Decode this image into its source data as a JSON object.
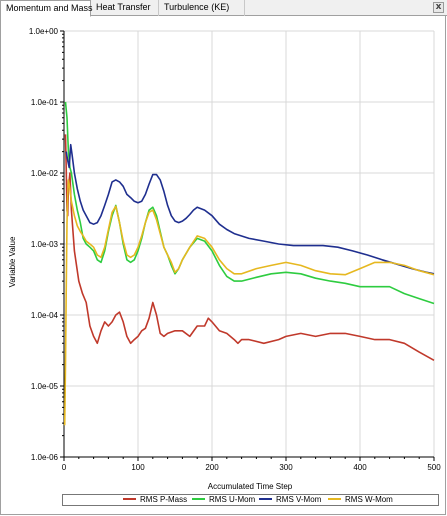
{
  "tabs": [
    {
      "label": "Momentum and Mass",
      "active": true
    },
    {
      "label": "Heat Transfer",
      "active": false
    },
    {
      "label": "Turbulence (KE)",
      "active": false
    }
  ],
  "close_label": "x",
  "chart_data": {
    "type": "line",
    "xlabel": "Accumulated Time Step",
    "ylabel": "Variable Value",
    "xlim": [
      0,
      500
    ],
    "ylim": [
      1e-06,
      1
    ],
    "y_scale": "log",
    "x_ticks": [
      0,
      100,
      200,
      300,
      400,
      500
    ],
    "y_ticks": [
      {
        "value": 1,
        "label": "1.0e+00"
      },
      {
        "value": 0.1,
        "label": "1.0e-01"
      },
      {
        "value": 0.01,
        "label": "1.0e-02"
      },
      {
        "value": 0.001,
        "label": "1.0e-03"
      },
      {
        "value": 0.0001,
        "label": "1.0e-04"
      },
      {
        "value": 1e-05,
        "label": "1.0e-05"
      },
      {
        "value": 1e-06,
        "label": "1.0e-06"
      }
    ],
    "grid": true,
    "legend_position": "bottom",
    "series": [
      {
        "name": "RMS P-Mass",
        "color": "#c0392b",
        "x": [
          2,
          3,
          4,
          5,
          6,
          8,
          10,
          14,
          20,
          25,
          30,
          35,
          40,
          45,
          50,
          55,
          60,
          65,
          70,
          75,
          80,
          85,
          90,
          95,
          100,
          105,
          110,
          115,
          120,
          125,
          130,
          135,
          140,
          150,
          160,
          170,
          180,
          190,
          195,
          200,
          210,
          220,
          230,
          235,
          240,
          250,
          270,
          290,
          300,
          320,
          340,
          360,
          380,
          400,
          420,
          440,
          460,
          480,
          500
        ],
        "y": [
          0.035,
          0.012,
          0.003,
          0.0025,
          0.006,
          0.01,
          0.003,
          0.0008,
          0.0003,
          0.0002,
          0.00015,
          7e-05,
          5e-05,
          4e-05,
          6e-05,
          8e-05,
          7e-05,
          8e-05,
          0.0001,
          0.00011,
          8e-05,
          5e-05,
          4e-05,
          4.5e-05,
          5e-05,
          6e-05,
          6.5e-05,
          9e-05,
          0.00015,
          0.0001,
          5.5e-05,
          5e-05,
          5.5e-05,
          6e-05,
          6e-05,
          5e-05,
          7e-05,
          7e-05,
          9e-05,
          8e-05,
          6e-05,
          5.5e-05,
          4.5e-05,
          4e-05,
          4.5e-05,
          4.5e-05,
          4e-05,
          4.5e-05,
          5e-05,
          5.5e-05,
          5e-05,
          5.5e-05,
          5.5e-05,
          5e-05,
          4.5e-05,
          4.5e-05,
          4e-05,
          3e-05,
          2.3e-05
        ]
      },
      {
        "name": "RMS U-Mom",
        "color": "#2ecc40",
        "x": [
          2,
          4,
          6,
          8,
          10,
          14,
          18,
          22,
          26,
          30,
          35,
          40,
          45,
          50,
          55,
          60,
          65,
          70,
          75,
          80,
          85,
          90,
          95,
          100,
          105,
          110,
          115,
          120,
          125,
          130,
          135,
          140,
          145,
          150,
          155,
          160,
          170,
          180,
          190,
          200,
          210,
          220,
          230,
          240,
          260,
          280,
          300,
          320,
          340,
          360,
          380,
          400,
          420,
          440,
          460,
          480,
          500
        ],
        "y": [
          0.1,
          0.06,
          0.02,
          0.012,
          0.01,
          0.005,
          0.003,
          0.002,
          0.0012,
          0.001,
          0.0009,
          0.0008,
          0.0006,
          0.00055,
          0.0008,
          0.0015,
          0.0025,
          0.0035,
          0.002,
          0.001,
          0.0006,
          0.00055,
          0.0006,
          0.0008,
          0.0012,
          0.002,
          0.003,
          0.0033,
          0.0025,
          0.0015,
          0.0009,
          0.0007,
          0.0005,
          0.00038,
          0.00045,
          0.0006,
          0.0009,
          0.0012,
          0.0011,
          0.0008,
          0.0005,
          0.00035,
          0.0003,
          0.0003,
          0.00034,
          0.00038,
          0.0004,
          0.00038,
          0.00033,
          0.0003,
          0.00028,
          0.00025,
          0.00025,
          0.00025,
          0.0002,
          0.00017,
          0.000145
        ]
      },
      {
        "name": "RMS V-Mom",
        "color": "#1f2f8f",
        "x": [
          3,
          5,
          7,
          9,
          11,
          14,
          18,
          22,
          26,
          30,
          35,
          40,
          45,
          50,
          55,
          60,
          65,
          70,
          75,
          80,
          85,
          90,
          95,
          100,
          105,
          110,
          115,
          120,
          125,
          130,
          135,
          140,
          145,
          150,
          155,
          160,
          165,
          170,
          175,
          180,
          190,
          200,
          210,
          220,
          230,
          250,
          270,
          290,
          310,
          330,
          350,
          370,
          390,
          410,
          430,
          450,
          470,
          490,
          500
        ],
        "y": [
          0.02,
          0.015,
          0.012,
          0.025,
          0.018,
          0.01,
          0.006,
          0.004,
          0.003,
          0.0025,
          0.002,
          0.0019,
          0.002,
          0.0025,
          0.0035,
          0.005,
          0.0075,
          0.008,
          0.0075,
          0.0065,
          0.005,
          0.0045,
          0.004,
          0.0038,
          0.004,
          0.005,
          0.007,
          0.0095,
          0.0095,
          0.008,
          0.0055,
          0.0035,
          0.0025,
          0.0021,
          0.002,
          0.0021,
          0.0023,
          0.0026,
          0.003,
          0.0033,
          0.003,
          0.0025,
          0.0019,
          0.0016,
          0.0014,
          0.0012,
          0.0011,
          0.001,
          0.00095,
          0.00095,
          0.00095,
          0.0009,
          0.0008,
          0.0007,
          0.0006,
          0.00052,
          0.00045,
          0.0004,
          0.00038
        ]
      },
      {
        "name": "RMS W-Mom",
        "color": "#e6b820",
        "x": [
          1,
          2,
          3,
          4,
          5,
          6,
          8,
          10,
          14,
          18,
          22,
          26,
          30,
          35,
          40,
          45,
          50,
          55,
          60,
          65,
          70,
          75,
          80,
          85,
          90,
          95,
          100,
          105,
          110,
          115,
          120,
          125,
          130,
          135,
          140,
          145,
          150,
          155,
          160,
          170,
          180,
          190,
          200,
          210,
          220,
          230,
          240,
          260,
          280,
          300,
          320,
          340,
          360,
          380,
          400,
          420,
          440,
          460,
          480,
          500
        ],
        "y": [
          2.8e-06,
          2e-05,
          0.0002,
          0.002,
          0.005,
          0.008,
          0.006,
          0.004,
          0.0025,
          0.0018,
          0.0015,
          0.0013,
          0.0011,
          0.001,
          0.0009,
          0.0007,
          0.00065,
          0.0009,
          0.0016,
          0.0028,
          0.0034,
          0.002,
          0.0011,
          0.0007,
          0.00065,
          0.0007,
          0.0009,
          0.0013,
          0.002,
          0.0028,
          0.003,
          0.0022,
          0.0014,
          0.0009,
          0.0007,
          0.00055,
          0.0004,
          0.00045,
          0.0006,
          0.0009,
          0.0013,
          0.0012,
          0.0009,
          0.0006,
          0.00045,
          0.00038,
          0.00038,
          0.00045,
          0.0005,
          0.00055,
          0.0005,
          0.00042,
          0.00038,
          0.00037,
          0.00045,
          0.00055,
          0.00055,
          0.0005,
          0.00042,
          0.00037
        ]
      }
    ]
  }
}
